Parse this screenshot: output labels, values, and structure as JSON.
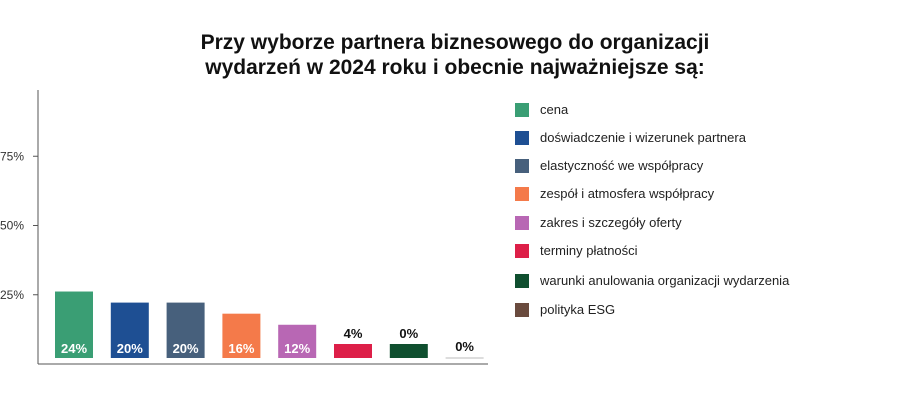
{
  "chart_data": {
    "type": "bar",
    "title": [
      "Przy wyborze partnera biznesowego do organizacji",
      "wydarzeń w 2024 roku i obecnie najważniejsze są:"
    ],
    "ylim": [
      0,
      100
    ],
    "yticks": [
      25,
      50,
      75
    ],
    "ytick_labels": [
      "25%",
      "50%",
      "75%"
    ],
    "grid": false,
    "legend_position": "right",
    "categories": [
      "cena",
      "doświadczenie i wizerunek partnera",
      "elastyczność we współpracy",
      "zespół i atmosfera współpracy",
      "zakres i szczegóły oferty",
      "terminy płatności",
      "warunki anulowania organizacji wydarzenia",
      "polityka ESG"
    ],
    "values": [
      24,
      20,
      20,
      16,
      12,
      4,
      0,
      0
    ],
    "value_labels": [
      "24%",
      "20%",
      "20%",
      "16%",
      "12%",
      "4%",
      "0%",
      "0%"
    ],
    "colors": [
      "#3a9e74",
      "#1e4f93",
      "#47607c",
      "#f47a4a",
      "#b867b4",
      "#dd1f48",
      "#0f4f2f",
      "#6a4b3e"
    ]
  }
}
